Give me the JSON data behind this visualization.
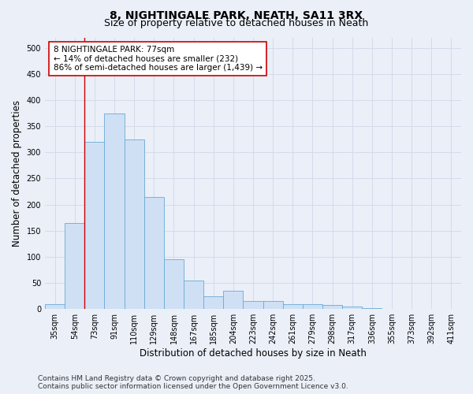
{
  "title": "8, NIGHTINGALE PARK, NEATH, SA11 3RX",
  "subtitle": "Size of property relative to detached houses in Neath",
  "xlabel": "Distribution of detached houses by size in Neath",
  "ylabel": "Number of detached properties",
  "bins": [
    "35sqm",
    "54sqm",
    "73sqm",
    "91sqm",
    "110sqm",
    "129sqm",
    "148sqm",
    "167sqm",
    "185sqm",
    "204sqm",
    "223sqm",
    "242sqm",
    "261sqm",
    "279sqm",
    "298sqm",
    "317sqm",
    "336sqm",
    "355sqm",
    "373sqm",
    "392sqm",
    "411sqm"
  ],
  "values": [
    10,
    165,
    320,
    375,
    325,
    215,
    95,
    55,
    25,
    35,
    15,
    15,
    10,
    10,
    8,
    5,
    2,
    1,
    1,
    0,
    0
  ],
  "bar_color": "#cfe0f5",
  "bar_edge_color": "#6aaad4",
  "vline_x": 1.5,
  "vline_color": "#cc0000",
  "annotation_text": "8 NIGHTINGALE PARK: 77sqm\n← 14% of detached houses are smaller (232)\n86% of semi-detached houses are larger (1,439) →",
  "annotation_box_facecolor": "#ffffff",
  "annotation_box_edgecolor": "#cc0000",
  "ylim": [
    0,
    520
  ],
  "yticks": [
    0,
    50,
    100,
    150,
    200,
    250,
    300,
    350,
    400,
    450,
    500
  ],
  "bg_color": "#eaeff8",
  "plot_bg_color": "#eaeff8",
  "grid_color": "#d0d8e8",
  "footer_line1": "Contains HM Land Registry data © Crown copyright and database right 2025.",
  "footer_line2": "Contains public sector information licensed under the Open Government Licence v3.0.",
  "title_fontsize": 10,
  "subtitle_fontsize": 9,
  "axis_label_fontsize": 8.5,
  "tick_fontsize": 7,
  "annotation_fontsize": 7.5,
  "footer_fontsize": 6.5
}
